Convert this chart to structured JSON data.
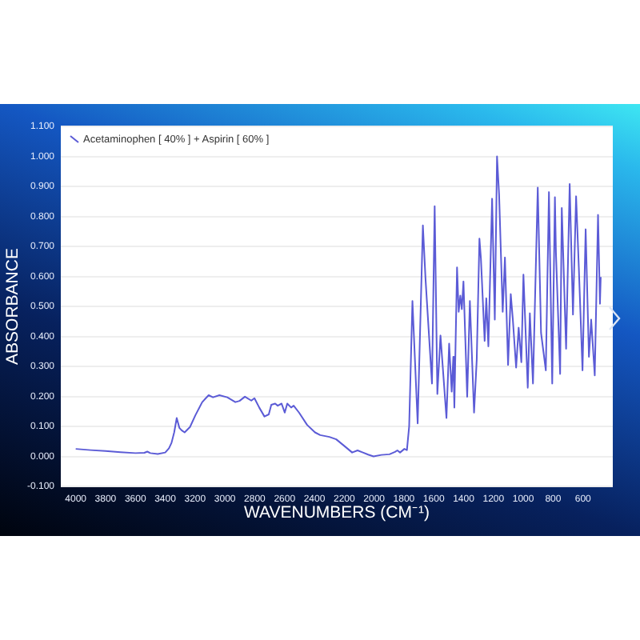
{
  "chart_data": {
    "type": "line",
    "xlabel": "WAVENUMBERS (CM⁻¹)",
    "ylabel": "ABSORBANCE",
    "x": [
      4000,
      3900,
      3800,
      3700,
      3600,
      3540,
      3520,
      3500,
      3450,
      3400,
      3375,
      3358,
      3340,
      3323,
      3305,
      3290,
      3270,
      3234,
      3198,
      3152,
      3109,
      3080,
      3037,
      2984,
      2930,
      2902,
      2866,
      2823,
      2802,
      2770,
      2735,
      2706,
      2689,
      2663,
      2646,
      2620,
      2599,
      2582,
      2556,
      2539,
      2503,
      2449,
      2396,
      2361,
      2300,
      2254,
      2200,
      2147,
      2111,
      2075,
      2040,
      2004,
      1951,
      1897,
      1860,
      1844,
      1826,
      1797,
      1780,
      1765,
      1743,
      1708,
      1673,
      1655,
      1612,
      1594,
      1576,
      1555,
      1515,
      1497,
      1480,
      1469,
      1462,
      1444,
      1433,
      1422,
      1412,
      1401,
      1376,
      1358,
      1330,
      1312,
      1294,
      1284,
      1259,
      1248,
      1234,
      1209,
      1191,
      1176,
      1162,
      1138,
      1123,
      1102,
      1084,
      1070,
      1048,
      1031,
      1013,
      999,
      970,
      956,
      935,
      903,
      881,
      849,
      828,
      806,
      788,
      781,
      753,
      742,
      713,
      689,
      667,
      646,
      628,
      603,
      582,
      560,
      545,
      521,
      499,
      486,
      481
    ],
    "series": [
      {
        "name": "Acetaminophen [ 40% ] + Aspirin [ 60% ]",
        "color": "#5b5bd6",
        "values": [
          0.025,
          0.021,
          0.018,
          0.014,
          0.011,
          0.012,
          0.016,
          0.011,
          0.008,
          0.013,
          0.027,
          0.045,
          0.08,
          0.128,
          0.095,
          0.087,
          0.08,
          0.098,
          0.137,
          0.181,
          0.204,
          0.197,
          0.204,
          0.197,
          0.181,
          0.185,
          0.199,
          0.186,
          0.194,
          0.163,
          0.133,
          0.14,
          0.172,
          0.176,
          0.169,
          0.176,
          0.146,
          0.176,
          0.163,
          0.169,
          0.146,
          0.105,
          0.08,
          0.071,
          0.065,
          0.057,
          0.035,
          0.013,
          0.02,
          0.013,
          0.006,
          0.0,
          0.005,
          0.007,
          0.015,
          0.02,
          0.013,
          0.025,
          0.021,
          0.1,
          0.518,
          0.11,
          0.77,
          0.589,
          0.243,
          0.834,
          0.208,
          0.403,
          0.128,
          0.376,
          0.216,
          0.332,
          0.163,
          0.63,
          0.482,
          0.536,
          0.491,
          0.583,
          0.199,
          0.518,
          0.146,
          0.323,
          0.726,
          0.66,
          0.385,
          0.527,
          0.367,
          0.859,
          0.456,
          1.0,
          0.872,
          0.482,
          0.663,
          0.305,
          0.541,
          0.456,
          0.296,
          0.429,
          0.314,
          0.606,
          0.229,
          0.477,
          0.243,
          0.896,
          0.412,
          0.287,
          0.881,
          0.243,
          0.864,
          0.678,
          0.275,
          0.828,
          0.359,
          0.908,
          0.473,
          0.867,
          0.633,
          0.287,
          0.757,
          0.332,
          0.456,
          0.27,
          0.805,
          0.509,
          0.598
        ]
      }
    ],
    "xlim": [
      4100,
      400
    ],
    "ylim": [
      -0.1,
      1.1
    ],
    "xticks": [
      4000,
      3800,
      3600,
      3400,
      3200,
      3000,
      2800,
      2600,
      2400,
      2200,
      2000,
      1800,
      1600,
      1400,
      1200,
      1000,
      800,
      600
    ],
    "yticks": [
      {
        "value": -0.1,
        "label": "-0.100"
      },
      {
        "value": 0,
        "label": "0.000"
      },
      {
        "value": 0.1,
        "label": "0.100"
      },
      {
        "value": 0.2,
        "label": "0.200"
      },
      {
        "value": 0.3,
        "label": "0.300"
      },
      {
        "value": 0.4,
        "label": "0.400"
      },
      {
        "value": 0.5,
        "label": "0.500"
      },
      {
        "value": 0.6,
        "label": "0.600"
      },
      {
        "value": 0.7,
        "label": "0.700"
      },
      {
        "value": 0.8,
        "label": "0.800"
      },
      {
        "value": 0.9,
        "label": "0.900"
      },
      {
        "value": 1,
        "label": "1.000"
      },
      {
        "value": 1.1,
        "label": "1.100"
      }
    ],
    "grid": "y",
    "legend": "top left"
  }
}
